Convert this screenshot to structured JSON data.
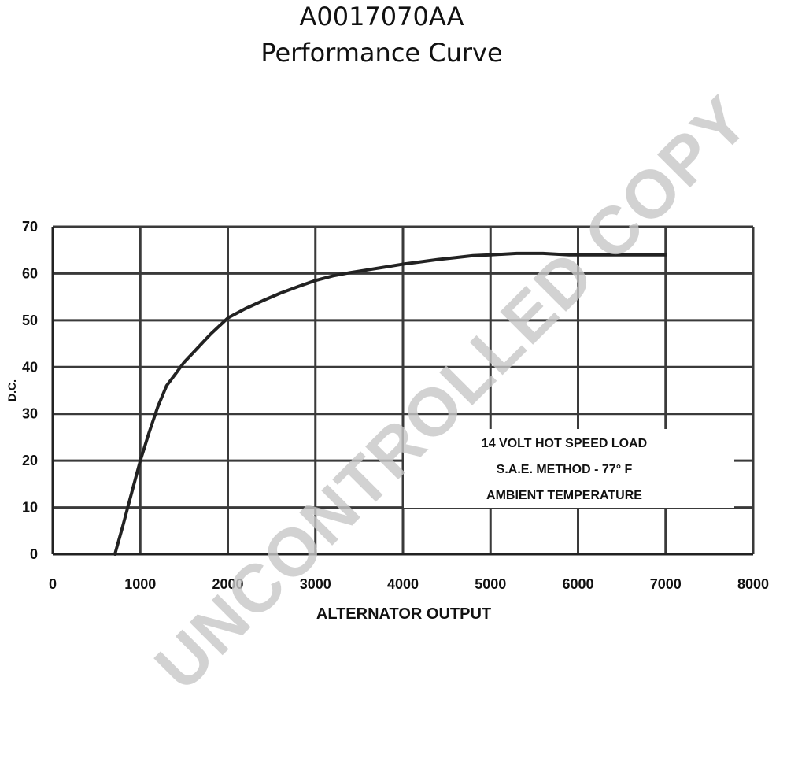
{
  "title": "A0017070AA",
  "subtitle": "Performance Curve",
  "watermark": "UNCONTROLLED COPY",
  "chart_data": {
    "type": "line",
    "title": "A0017070AA",
    "subtitle": "Performance Curve",
    "xlabel": "ALTERNATOR OUTPUT",
    "ylabel": "D.C.",
    "xlim": [
      0,
      8000
    ],
    "ylim": [
      0,
      70
    ],
    "xticks": [
      "0",
      "1000",
      "2000",
      "3000",
      "4000",
      "5000",
      "6000",
      "7000",
      "8000"
    ],
    "yticks": [
      "0",
      "10",
      "20",
      "30",
      "40",
      "50",
      "60",
      "70"
    ],
    "grid": true,
    "x": [
      710,
      800,
      900,
      1000,
      1100,
      1200,
      1300,
      1400,
      1500,
      1600,
      1700,
      1800,
      2000,
      2200,
      2400,
      2600,
      2800,
      3000,
      3200,
      3400,
      3600,
      3800,
      4000,
      4200,
      4400,
      4600,
      4800,
      5000,
      5300,
      5600,
      5900
    ],
    "y": [
      0,
      6,
      13,
      20,
      26,
      31.5,
      36,
      38.5,
      41,
      43,
      45,
      47,
      50.5,
      52.5,
      54.2,
      55.8,
      57.2,
      58.5,
      59.5,
      60.2,
      60.8,
      61.4,
      62,
      62.5,
      63,
      63.4,
      63.8,
      64,
      64.3,
      64.3,
      64
    ],
    "plateau": {
      "y": 64,
      "x_end": 7000
    },
    "annotations": [
      "14 VOLT HOT SPEED LOAD",
      "S.A.E. METHOD - 77° F",
      "AMBIENT TEMPERATURE"
    ]
  }
}
